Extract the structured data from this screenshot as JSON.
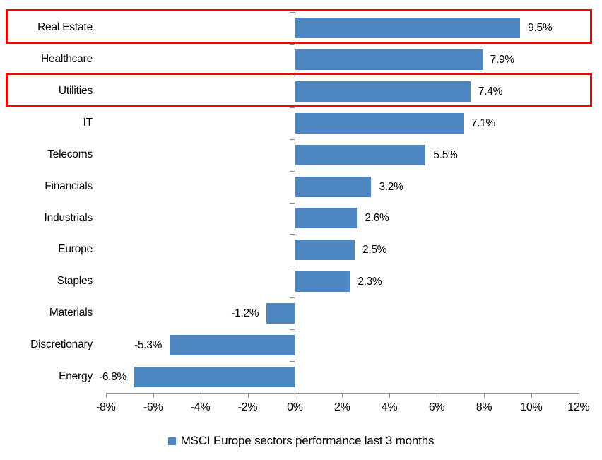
{
  "chart_data": {
    "type": "bar",
    "orientation": "horizontal",
    "title": "",
    "categories": [
      "Real Estate",
      "Healthcare",
      "Utilities",
      "IT",
      "Telecoms",
      "Financials",
      "Industrials",
      "Europe",
      "Staples",
      "Materials",
      "Discretionary",
      "Energy"
    ],
    "values": [
      9.5,
      7.9,
      7.4,
      7.1,
      5.5,
      3.2,
      2.6,
      2.5,
      2.3,
      -1.2,
      -5.3,
      -6.8
    ],
    "data_labels": [
      "9.5%",
      "7.9%",
      "7.4%",
      "7.1%",
      "5.5%",
      "3.2%",
      "2.6%",
      "2.5%",
      "2.3%",
      "-1.2%",
      "-5.3%",
      "-6.8%"
    ],
    "x_axis": {
      "min": -8,
      "max": 12,
      "step": 2,
      "tick_labels": [
        "-8%",
        "-6%",
        "-4%",
        "-2%",
        "0%",
        "2%",
        "4%",
        "6%",
        "8%",
        "10%",
        "12%"
      ]
    },
    "grid": false,
    "legend": {
      "label": "MSCI Europe sectors performance last 3 months",
      "position": "bottom",
      "marker": "square"
    },
    "colors": {
      "bar": "#4D86C1",
      "axis": "#8E8E8E",
      "text": "#000000",
      "highlight_border": "#FE0000"
    },
    "highlighted_categories": [
      "Real Estate",
      "Utilities"
    ]
  }
}
